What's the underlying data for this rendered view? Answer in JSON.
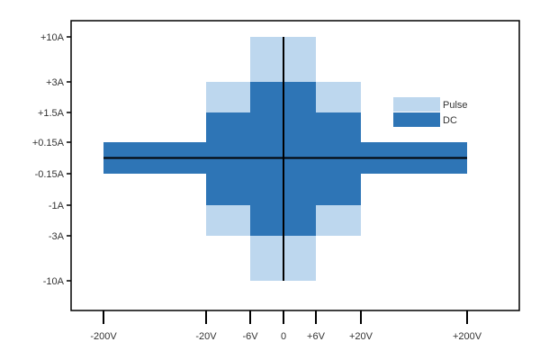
{
  "chart_data": {
    "type": "area",
    "title": "",
    "xlabel": "",
    "ylabel": "",
    "grid": false,
    "legend_position": "right",
    "x_ticks": [
      {
        "value": -200,
        "label": "-200V"
      },
      {
        "value": -20,
        "label": "-20V"
      },
      {
        "value": -6,
        "label": "-6V"
      },
      {
        "value": 0,
        "label": "0"
      },
      {
        "value": 6,
        "label": "+6V"
      },
      {
        "value": 20,
        "label": "+20V"
      },
      {
        "value": 200,
        "label": "+200V"
      }
    ],
    "y_ticks": [
      {
        "value": 10,
        "label": "+10A"
      },
      {
        "value": 3,
        "label": "+3A"
      },
      {
        "value": 1.5,
        "label": "+1.5A"
      },
      {
        "value": 0.15,
        "label": "+0.15A"
      },
      {
        "value": -0.15,
        "label": "-0.15A"
      },
      {
        "value": -1,
        "label": "-1A"
      },
      {
        "value": -3,
        "label": "-3A"
      },
      {
        "value": -10,
        "label": "-10A"
      }
    ],
    "series": [
      {
        "name": "Pulse",
        "color": "#bdd7ee",
        "regions": [
          {
            "v": [
              -6,
              6
            ],
            "i": [
              -10,
              10
            ]
          },
          {
            "v": [
              -20,
              20
            ],
            "i": [
              -3,
              3
            ]
          },
          {
            "v": [
              -200,
              200
            ],
            "i": [
              -0.15,
              0.15
            ]
          }
        ]
      },
      {
        "name": "DC",
        "color": "#2e75b6",
        "regions": [
          {
            "v": [
              -6,
              6
            ],
            "i": [
              -3,
              3
            ]
          },
          {
            "v": [
              -20,
              20
            ],
            "i": [
              -1,
              1.5
            ]
          },
          {
            "v": [
              -200,
              200
            ],
            "i": [
              -0.15,
              0.15
            ]
          }
        ]
      }
    ],
    "axis_line_color": "#000000"
  }
}
